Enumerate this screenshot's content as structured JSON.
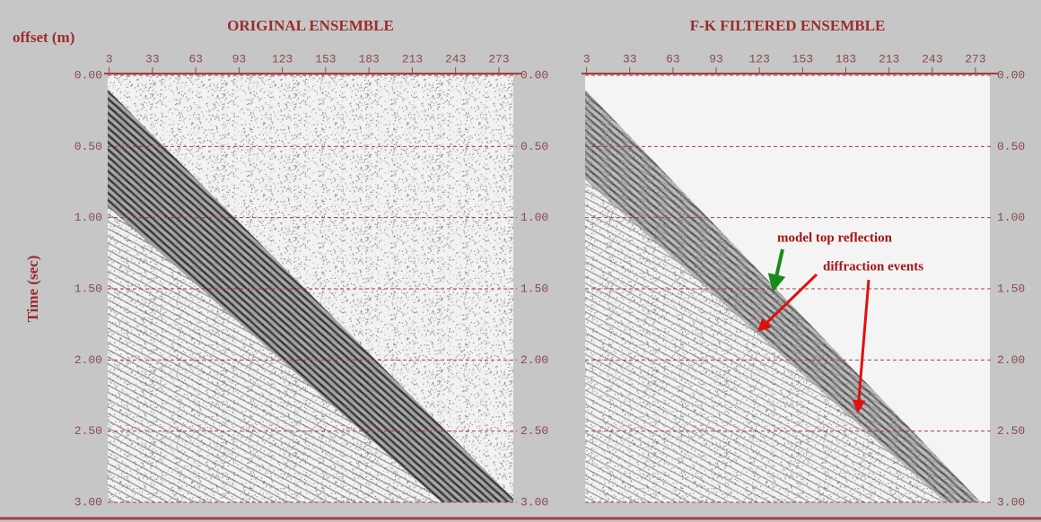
{
  "chart_data": [
    {
      "type": "seismic",
      "title": "ORIGINAL ENSEMBLE",
      "xlabel": "offset (m)",
      "ylabel": "Time (sec)",
      "xlim": [
        2,
        283
      ],
      "xticks": [
        3,
        33,
        63,
        93,
        123,
        153,
        183,
        213,
        243,
        273
      ],
      "ylim": [
        0,
        3
      ],
      "yticks": [
        {
          "value": 0,
          "label": "0.00"
        },
        {
          "value": 0.5,
          "label": "0.50"
        },
        {
          "value": 1,
          "label": "1.00"
        },
        {
          "value": 1.5,
          "label": "1.50"
        },
        {
          "value": 2,
          "label": "2.00"
        },
        {
          "value": 2.5,
          "label": "2.50"
        },
        {
          "value": 3,
          "label": "3.00"
        }
      ],
      "grid": true
    },
    {
      "type": "seismic",
      "title": "F-K FILTERED ENSEMBLE",
      "xlim": [
        2,
        283
      ],
      "xticks": [
        3,
        33,
        63,
        93,
        123,
        153,
        183,
        213,
        243,
        273
      ],
      "ylim": [
        0,
        3
      ],
      "yticks": [
        {
          "value": 0,
          "label": "0.00"
        },
        {
          "value": 0.5,
          "label": "0.50"
        },
        {
          "value": 1,
          "label": "1.00"
        },
        {
          "value": 1.5,
          "label": "1.50"
        },
        {
          "value": 2,
          "label": "2.00"
        },
        {
          "value": 2.5,
          "label": "2.50"
        },
        {
          "value": 3,
          "label": "3.00"
        }
      ],
      "grid": true,
      "annotations": [
        "model top reflection",
        "diffraction events"
      ]
    }
  ]
}
